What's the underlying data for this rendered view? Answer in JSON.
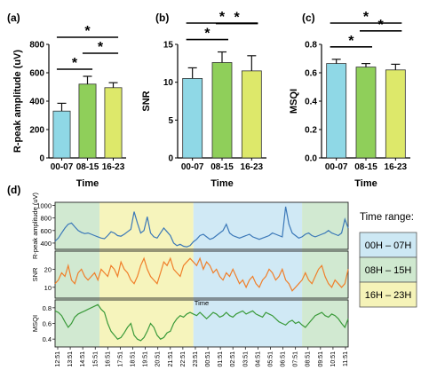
{
  "panel_labels": [
    "(a)",
    "(b)",
    "(c)",
    "(d)"
  ],
  "colors": {
    "bar_0007": "#8fd8e6",
    "bar_0815": "#8fcf5a",
    "bar_1623": "#dde86a",
    "band_0007": "#cfe8cf",
    "band_0815": "#f5f3b8",
    "band_1623": "#cfe8cf",
    "band_night_blue": "#cde8f4",
    "line_rpeak": "#3b78b8",
    "line_snr": "#f07f2a",
    "line_msqi": "#3a9a3a"
  },
  "legend": {
    "title": "Time range:",
    "items": [
      {
        "label": "00H – 07H",
        "color": "#cde8f4"
      },
      {
        "label": "08H – 15H",
        "color": "#cfe8cf"
      },
      {
        "label": "16H – 23H",
        "color": "#f5f3b8"
      }
    ]
  },
  "chart_data": [
    {
      "type": "bar",
      "panel": "(a)",
      "categories": [
        "00-07",
        "08-15",
        "16-23"
      ],
      "values": [
        330,
        520,
        495
      ],
      "errors": [
        55,
        55,
        35
      ],
      "xlabel": "Time",
      "ylabel": "R-peak amplitude (uV)",
      "ylim": [
        0,
        800
      ],
      "yticks": [
        0,
        200,
        400,
        600,
        800
      ],
      "significance": [
        {
          "from": 0,
          "to": 1,
          "label": "*"
        },
        {
          "from": 1,
          "to": 2,
          "label": "*"
        },
        {
          "from": 0,
          "to": 2,
          "label": "*"
        }
      ]
    },
    {
      "type": "bar",
      "panel": "(b)",
      "categories": [
        "00-07",
        "08-15",
        "16-23"
      ],
      "values": [
        10.5,
        12.6,
        11.5
      ],
      "errors": [
        1.4,
        1.4,
        2.0
      ],
      "xlabel": "Time",
      "ylabel": "SNR",
      "ylim": [
        0,
        15
      ],
      "yticks": [
        0,
        5,
        10,
        15
      ],
      "significance": [
        {
          "from": 0,
          "to": 1,
          "label": "*"
        },
        {
          "from": 1,
          "to": 2,
          "label": "*"
        },
        {
          "from": 0,
          "to": 2,
          "label": "*"
        }
      ]
    },
    {
      "type": "bar",
      "panel": "(c)",
      "categories": [
        "00-07",
        "08-15",
        "16-23"
      ],
      "values": [
        0.665,
        0.64,
        0.62
      ],
      "errors": [
        0.03,
        0.025,
        0.04
      ],
      "xlabel": "Time",
      "ylabel": "MSQI",
      "ylim": [
        0,
        0.8
      ],
      "yticks": [
        0.0,
        0.2,
        0.4,
        0.6,
        0.8
      ],
      "significance": [
        {
          "from": 0,
          "to": 1,
          "label": "*"
        },
        {
          "from": 1,
          "to": 2,
          "label": "*"
        },
        {
          "from": 0,
          "to": 2,
          "label": "*"
        }
      ]
    },
    {
      "type": "line",
      "panel": "(d)",
      "xlabel": "Time",
      "x_ticks": [
        "12:51",
        "13:51",
        "14:51",
        "15:51",
        "16:51",
        "17:51",
        "18:51",
        "19:51",
        "20:51",
        "21:51",
        "22:51",
        "23:51",
        "00:51",
        "01:51",
        "02:51",
        "03:51",
        "04:51",
        "05:51",
        "06:51",
        "07:51",
        "08:51",
        "09:51",
        "10:51",
        "11:51"
      ],
      "n_points": 90,
      "bands": [
        {
          "from": 0,
          "to": 13.5,
          "range": "08H – 15H"
        },
        {
          "from": 13.5,
          "to": 42,
          "range": "16H – 23H"
        },
        {
          "from": 42,
          "to": 75,
          "range": "00H – 07H"
        },
        {
          "from": 75,
          "to": 89,
          "range": "08H – 15H"
        }
      ],
      "series": [
        {
          "name": "R-peak amplitude (uV)",
          "ylim": [
            300,
            1050
          ],
          "yticks": [
            400,
            600,
            800,
            1000
          ],
          "values": [
            430,
            480,
            560,
            640,
            700,
            720,
            660,
            600,
            570,
            550,
            560,
            540,
            520,
            500,
            480,
            470,
            520,
            580,
            560,
            520,
            510,
            540,
            580,
            620,
            900,
            720,
            560,
            600,
            820,
            560,
            500,
            480,
            560,
            640,
            580,
            520,
            400,
            360,
            380,
            350,
            340,
            360,
            420,
            460,
            520,
            540,
            500,
            460,
            480,
            520,
            560,
            600,
            700,
            560,
            520,
            500,
            480,
            500,
            520,
            540,
            500,
            480,
            460,
            480,
            500,
            520,
            560,
            540,
            520,
            500,
            980,
            700,
            560,
            520,
            480,
            500,
            540,
            560,
            520,
            500,
            520,
            540,
            560,
            600,
            560,
            540,
            520,
            560,
            780,
            640
          ]
        },
        {
          "name": "SNR",
          "ylim": [
            4,
            30
          ],
          "yticks": [
            10,
            20
          ],
          "values": [
            12,
            14,
            18,
            16,
            22,
            14,
            12,
            18,
            20,
            16,
            14,
            16,
            18,
            14,
            20,
            18,
            16,
            22,
            20,
            16,
            24,
            20,
            18,
            14,
            12,
            16,
            22,
            26,
            20,
            16,
            14,
            12,
            18,
            24,
            22,
            26,
            20,
            18,
            16,
            22,
            24,
            26,
            24,
            22,
            26,
            20,
            24,
            22,
            18,
            20,
            16,
            14,
            18,
            16,
            20,
            16,
            12,
            14,
            10,
            14,
            16,
            12,
            10,
            14,
            16,
            20,
            18,
            14,
            16,
            20,
            14,
            12,
            8,
            10,
            12,
            14,
            18,
            14,
            12,
            16,
            20,
            22,
            16,
            12,
            10,
            14,
            12,
            10,
            12,
            20
          ]
        },
        {
          "name": "MSQI",
          "ylim": [
            0.3,
            0.9
          ],
          "yticks": [
            0.4,
            0.6,
            0.8
          ],
          "values": [
            0.76,
            0.74,
            0.7,
            0.62,
            0.55,
            0.6,
            0.68,
            0.72,
            0.74,
            0.76,
            0.78,
            0.8,
            0.82,
            0.84,
            0.78,
            0.74,
            0.6,
            0.5,
            0.45,
            0.4,
            0.42,
            0.48,
            0.55,
            0.6,
            0.45,
            0.4,
            0.38,
            0.42,
            0.5,
            0.6,
            0.55,
            0.45,
            0.4,
            0.42,
            0.48,
            0.5,
            0.6,
            0.66,
            0.7,
            0.68,
            0.72,
            0.74,
            0.72,
            0.7,
            0.74,
            0.7,
            0.66,
            0.7,
            0.74,
            0.72,
            0.68,
            0.7,
            0.74,
            0.7,
            0.68,
            0.72,
            0.74,
            0.76,
            0.72,
            0.74,
            0.76,
            0.72,
            0.7,
            0.68,
            0.74,
            0.72,
            0.7,
            0.66,
            0.62,
            0.6,
            0.58,
            0.62,
            0.64,
            0.6,
            0.62,
            0.58,
            0.55,
            0.6,
            0.65,
            0.7,
            0.72,
            0.74,
            0.7,
            0.68,
            0.72,
            0.7,
            0.66,
            0.6,
            0.55,
            0.66
          ]
        }
      ]
    }
  ]
}
